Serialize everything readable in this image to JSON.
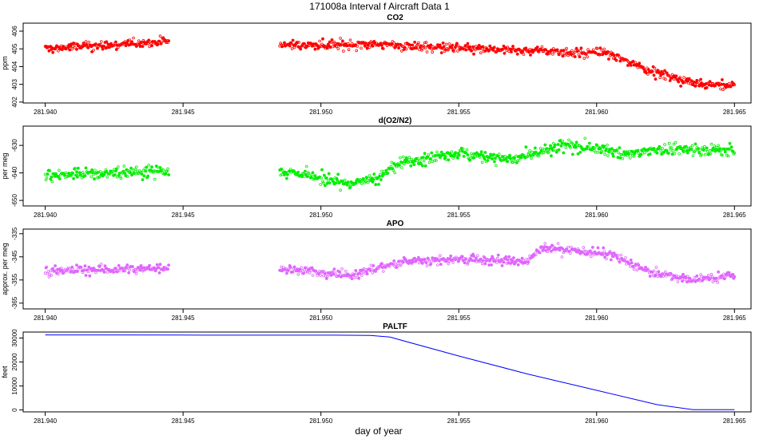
{
  "figure": {
    "title": "171008a   Interval f Aircraft Data 1",
    "xlabel": "day of year"
  },
  "chart_data": [
    {
      "type": "scatter",
      "title": "CO2",
      "ylabel": "ppm",
      "xlim": [
        281.9392,
        281.9656
      ],
      "ylim": [
        401.95,
        406.45
      ],
      "xticks": [
        "281.940",
        "281.945",
        "281.950",
        "281.955",
        "281.960",
        "281.965"
      ],
      "yticks": [
        "402",
        "403",
        "404",
        "405",
        "406"
      ],
      "color": "#ff0000",
      "gap": [
        281.9445,
        281.9485
      ],
      "x_range": [
        281.94,
        281.965
      ],
      "trend": [
        [
          281.94,
          405.0
        ],
        [
          281.9444,
          405.4
        ],
        [
          281.9485,
          405.2
        ],
        [
          281.952,
          405.25
        ],
        [
          281.956,
          404.95
        ],
        [
          281.958,
          404.9
        ],
        [
          281.9605,
          404.7
        ],
        [
          281.962,
          403.7
        ],
        [
          281.9635,
          403.05
        ],
        [
          281.965,
          402.9
        ]
      ],
      "noise": 0.4
    },
    {
      "type": "scatter",
      "title": "d(O2/N2)",
      "ylabel": "per meg",
      "xlim": [
        281.9392,
        281.9656
      ],
      "ylim": [
        -652,
        -623
      ],
      "xticks": [
        "281.940",
        "281.945",
        "281.950",
        "281.955",
        "281.960",
        "281.965"
      ],
      "yticks": [
        "-650",
        "-640",
        "-630"
      ],
      "color": "#00ee00",
      "gap": [
        281.9445,
        281.9485
      ],
      "x_range": [
        281.94,
        281.965
      ],
      "trend": [
        [
          281.94,
          -641
        ],
        [
          281.9444,
          -639
        ],
        [
          281.9485,
          -639
        ],
        [
          281.951,
          -644
        ],
        [
          281.952,
          -642
        ],
        [
          281.953,
          -636
        ],
        [
          281.955,
          -633
        ],
        [
          281.957,
          -635
        ],
        [
          281.959,
          -630
        ],
        [
          281.961,
          -633
        ],
        [
          281.963,
          -631
        ],
        [
          281.965,
          -632
        ]
      ],
      "noise": 3.5
    },
    {
      "type": "scatter",
      "title": "APO",
      "ylabel": "approx. per meg",
      "xlim": [
        281.9392,
        281.9656
      ],
      "ylim": [
        -367.5,
        -333
      ],
      "xticks": [
        "281.940",
        "281.945",
        "281.950",
        "281.955",
        "281.960",
        "281.965"
      ],
      "yticks": [
        "-365",
        "-355",
        "-345",
        "-335"
      ],
      "color": "#e066ff",
      "gap": [
        281.9445,
        281.9485
      ],
      "x_range": [
        281.94,
        281.965
      ],
      "trend": [
        [
          281.94,
          -351
        ],
        [
          281.9444,
          -350
        ],
        [
          281.9485,
          -350
        ],
        [
          281.951,
          -353
        ],
        [
          281.953,
          -347
        ],
        [
          281.955,
          -346
        ],
        [
          281.9575,
          -347
        ],
        [
          281.958,
          -341
        ],
        [
          281.9605,
          -344
        ],
        [
          281.962,
          -352
        ],
        [
          281.9635,
          -355
        ],
        [
          281.965,
          -353
        ]
      ],
      "noise": 3.0
    },
    {
      "type": "line",
      "title": "PALTF",
      "ylabel": "feet",
      "xlim": [
        281.9392,
        281.9656
      ],
      "ylim": [
        -800,
        32500
      ],
      "xticks": [
        "281.940",
        "281.945",
        "281.950",
        "281.955",
        "281.960",
        "281.965"
      ],
      "yticks": [
        "0",
        "10000",
        "20000",
        "30000"
      ],
      "color": "#0000ff",
      "x": [
        281.94,
        281.945,
        281.948,
        281.9505,
        281.9518,
        281.9525,
        281.955,
        281.9575,
        281.96,
        281.9622,
        281.9635,
        281.965
      ],
      "y": [
        31300,
        31250,
        31200,
        31200,
        31100,
        30400,
        22500,
        15000,
        8200,
        2200,
        100,
        100
      ]
    }
  ]
}
